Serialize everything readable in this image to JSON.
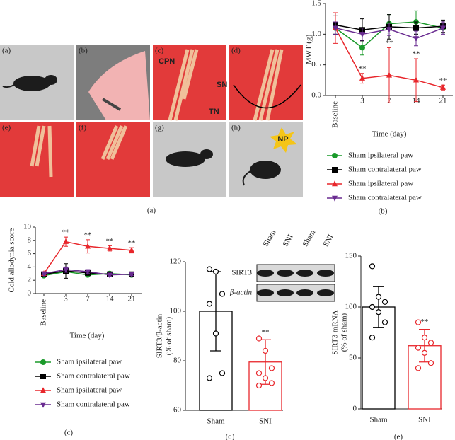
{
  "panel_a": {
    "sub_labels": [
      "(a)",
      "(b)",
      "(c)",
      "(d)",
      "(e)",
      "(f)",
      "(g)",
      "(h)"
    ],
    "nerves": [
      "CPN",
      "SN",
      "TN"
    ],
    "pain": "NP",
    "caption": "(a)"
  },
  "chart_data": [
    {
      "type": "line",
      "panel_label": "(b)",
      "y_label": "MWT (g)",
      "x_label": "Time (day)",
      "categories": [
        "Baseline",
        "3",
        "7",
        "14",
        "21"
      ],
      "ylim": [
        0,
        1.5
      ],
      "yticks": [
        {
          "value": 0,
          "label": "0.0"
        },
        {
          "value": 0.5,
          "label": "0.5"
        },
        {
          "value": 1,
          "label": "1.0"
        },
        {
          "value": 1.5,
          "label": "1.5"
        }
      ],
      "series": [
        {
          "name": "Sham ipsilateral paw",
          "color": "#1a9a2a",
          "marker": "circle",
          "values": [
            1.1,
            0.78,
            1.17,
            1.2,
            1.1
          ],
          "errors": [
            0.1,
            0.12,
            0.15,
            0.18,
            0.08
          ],
          "annotations": [
            null,
            null,
            null,
            null,
            null
          ]
        },
        {
          "name": "Sham contralateral paw",
          "color": "#000000",
          "marker": "square",
          "values": [
            1.15,
            1.07,
            1.12,
            1.1,
            1.13
          ],
          "errors": [
            0.15,
            0.18,
            0.2,
            0.1,
            0.1
          ],
          "annotations": [
            null,
            null,
            null,
            null,
            null
          ]
        },
        {
          "name": "Sham ipsilateral paw",
          "color": "#e8262b",
          "marker": "triangle",
          "values": [
            1.1,
            0.28,
            0.33,
            0.25,
            0.13
          ],
          "errors": [
            0.25,
            0.08,
            0.45,
            0.35,
            0.04
          ],
          "annotations": [
            null,
            "**",
            "**",
            "**",
            "**"
          ]
        },
        {
          "name": "Sham contralateral paw",
          "color": "#6a2c91",
          "marker": "triangle-down",
          "values": [
            1.1,
            1.0,
            1.08,
            0.93,
            1.1
          ],
          "errors": [
            0.1,
            0.1,
            0.1,
            0.12,
            0.1
          ],
          "annotations": [
            null,
            null,
            null,
            null,
            null
          ]
        }
      ]
    },
    {
      "type": "line",
      "panel_label": "(c)",
      "y_label": "Cold allodynia score",
      "x_label": "Time (day)",
      "categories": [
        "Baseline",
        "3",
        "7",
        "14",
        "21"
      ],
      "ylim": [
        0,
        10
      ],
      "yticks": [
        0,
        2,
        4,
        6,
        8,
        10
      ],
      "series": [
        {
          "name": "Sham ipsilateral paw",
          "color": "#1a9a2a",
          "marker": "circle",
          "values": [
            2.7,
            3.3,
            2.8,
            3.0,
            2.8
          ],
          "errors": [
            0.2,
            0.3,
            0.2,
            0.2,
            0.2
          ],
          "annotations": [
            null,
            null,
            null,
            null,
            null
          ]
        },
        {
          "name": "Sham contralateral paw",
          "color": "#000000",
          "marker": "square",
          "values": [
            2.9,
            3.4,
            3.1,
            2.9,
            2.9
          ],
          "errors": [
            0.2,
            1.1,
            0.3,
            0.2,
            0.2
          ],
          "annotations": [
            null,
            null,
            null,
            null,
            null
          ]
        },
        {
          "name": "Sham ipsilateral paw",
          "color": "#e8262b",
          "marker": "triangle",
          "values": [
            3.0,
            7.8,
            7.1,
            6.8,
            6.5
          ],
          "errors": [
            0.3,
            0.7,
            1.0,
            0.4,
            0.4
          ],
          "annotations": [
            null,
            "**",
            "**",
            "**",
            "**"
          ]
        },
        {
          "name": "Sham contralateral paw",
          "color": "#6a2c91",
          "marker": "triangle-down",
          "values": [
            3.0,
            3.6,
            3.3,
            2.8,
            2.9
          ],
          "errors": [
            0.2,
            0.4,
            0.3,
            0.2,
            0.2
          ],
          "annotations": [
            null,
            null,
            null,
            null,
            null
          ]
        }
      ]
    },
    {
      "type": "bar",
      "panel_label": "(d)",
      "y_label": [
        "SIRT3/β-actin",
        "(% of sham)"
      ],
      "blot": {
        "lanes": [
          "Sham",
          "SNI",
          "Sham",
          "SNI"
        ],
        "bands": [
          "SIRT3",
          "β-actin"
        ]
      },
      "categories": [
        "Sham",
        "SNI"
      ],
      "values": [
        100,
        79.5
      ],
      "errors": [
        16,
        9
      ],
      "colors": [
        "#000000",
        "#e8262b"
      ],
      "points": [
        [
          117,
          116,
          107,
          103,
          91,
          75,
          73
        ],
        [
          89,
          84,
          77,
          75,
          73,
          71,
          70
        ]
      ],
      "annotations": [
        null,
        "**"
      ],
      "ylim": [
        60,
        120
      ],
      "yticks": [
        60,
        80,
        100,
        120
      ]
    },
    {
      "type": "bar",
      "panel_label": "(e)",
      "y_label": [
        "SIRT3 mRNA",
        "(% of sham)"
      ],
      "categories": [
        "Sham",
        "SNI"
      ],
      "values": [
        100,
        62
      ],
      "errors": [
        20,
        16
      ],
      "colors": [
        "#000000",
        "#e8262b"
      ],
      "points": [
        [
          140,
          110,
          105,
          100,
          95,
          85,
          70
        ],
        [
          85,
          70,
          65,
          60,
          55,
          45,
          40
        ]
      ],
      "annotations": [
        null,
        "**"
      ],
      "ylim": [
        0,
        150
      ],
      "yticks": [
        0,
        50,
        100,
        150
      ]
    }
  ]
}
